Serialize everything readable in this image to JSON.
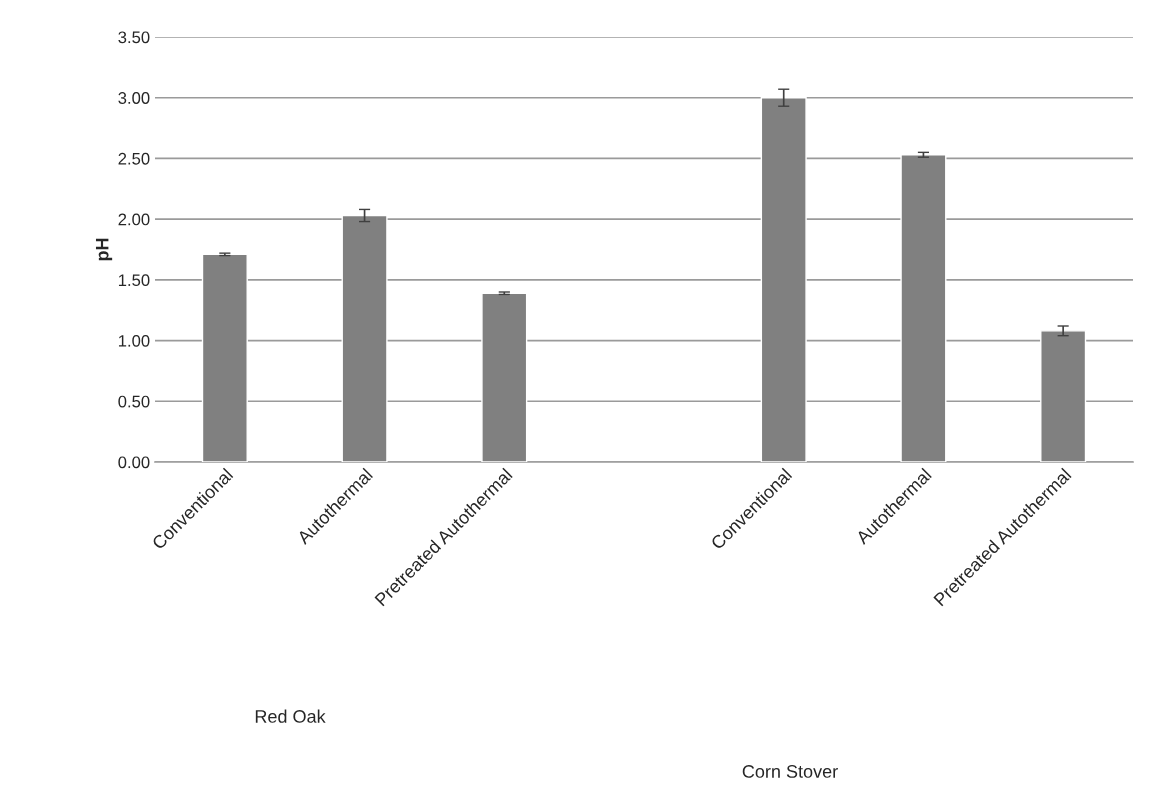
{
  "chart_data": {
    "type": "bar",
    "ylabel": "pH",
    "categories": [
      "Conventional",
      "Autothermal",
      "Pretreated Autothermal",
      null,
      "Conventional",
      "Autothermal",
      "Pretreated Autothermal"
    ],
    "values": [
      1.71,
      2.03,
      1.39,
      null,
      3.0,
      2.53,
      1.08
    ],
    "errors": [
      0.01,
      0.05,
      0.01,
      null,
      0.07,
      0.02,
      0.04
    ],
    "color": "#808080",
    "ylim": [
      0,
      3.5
    ],
    "yticks": [
      {
        "value": 0,
        "label": "0.00"
      },
      {
        "value": 0.5,
        "label": "0.50"
      },
      {
        "value": 1,
        "label": "1.00"
      },
      {
        "value": 1.5,
        "label": "1.50"
      },
      {
        "value": 2,
        "label": "2.00"
      },
      {
        "value": 2.5,
        "label": "2.50"
      },
      {
        "value": 3,
        "label": "3.00"
      },
      {
        "value": 3.5,
        "label": "3.50"
      }
    ],
    "grid": "y",
    "annotations": [
      "Red Oak",
      "Corn Stover"
    ]
  }
}
